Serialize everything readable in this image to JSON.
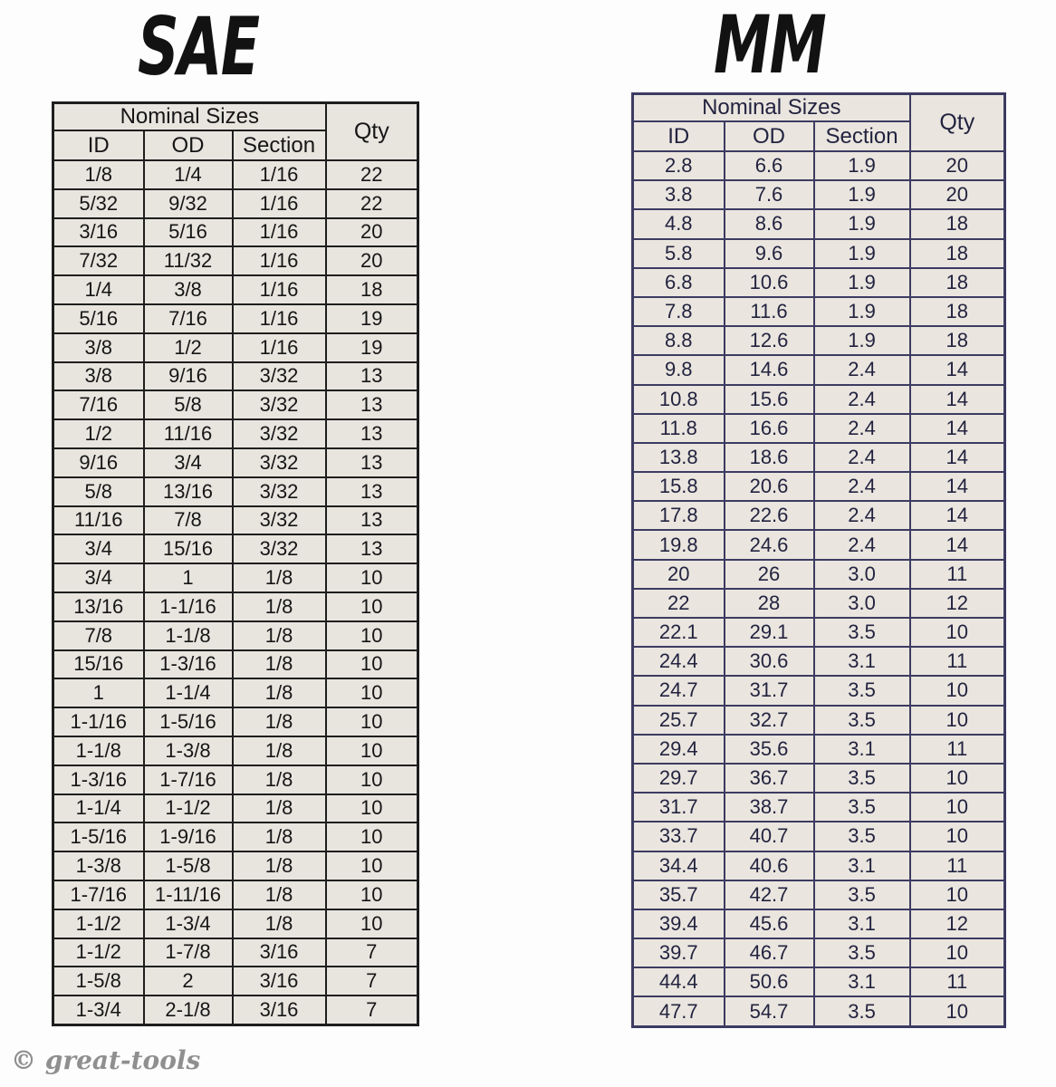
{
  "watermark": "© great-tools",
  "tables": [
    {
      "title": "SAE",
      "header_group": "Nominal Sizes",
      "qty_label": "Qty",
      "columns": [
        "ID",
        "OD",
        "Section"
      ],
      "rows": [
        [
          "1/8",
          "1/4",
          "1/16",
          "22"
        ],
        [
          "5/32",
          "9/32",
          "1/16",
          "22"
        ],
        [
          "3/16",
          "5/16",
          "1/16",
          "20"
        ],
        [
          "7/32",
          "11/32",
          "1/16",
          "20"
        ],
        [
          "1/4",
          "3/8",
          "1/16",
          "18"
        ],
        [
          "5/16",
          "7/16",
          "1/16",
          "19"
        ],
        [
          "3/8",
          "1/2",
          "1/16",
          "19"
        ],
        [
          "3/8",
          "9/16",
          "3/32",
          "13"
        ],
        [
          "7/16",
          "5/8",
          "3/32",
          "13"
        ],
        [
          "1/2",
          "11/16",
          "3/32",
          "13"
        ],
        [
          "9/16",
          "3/4",
          "3/32",
          "13"
        ],
        [
          "5/8",
          "13/16",
          "3/32",
          "13"
        ],
        [
          "11/16",
          "7/8",
          "3/32",
          "13"
        ],
        [
          "3/4",
          "15/16",
          "3/32",
          "13"
        ],
        [
          "3/4",
          "1",
          "1/8",
          "10"
        ],
        [
          "13/16",
          "1-1/16",
          "1/8",
          "10"
        ],
        [
          "7/8",
          "1-1/8",
          "1/8",
          "10"
        ],
        [
          "15/16",
          "1-3/16",
          "1/8",
          "10"
        ],
        [
          "1",
          "1-1/4",
          "1/8",
          "10"
        ],
        [
          "1-1/16",
          "1-5/16",
          "1/8",
          "10"
        ],
        [
          "1-1/8",
          "1-3/8",
          "1/8",
          "10"
        ],
        [
          "1-3/16",
          "1-7/16",
          "1/8",
          "10"
        ],
        [
          "1-1/4",
          "1-1/2",
          "1/8",
          "10"
        ],
        [
          "1-5/16",
          "1-9/16",
          "1/8",
          "10"
        ],
        [
          "1-3/8",
          "1-5/8",
          "1/8",
          "10"
        ],
        [
          "1-7/16",
          "1-11/16",
          "1/8",
          "10"
        ],
        [
          "1-1/2",
          "1-3/4",
          "1/8",
          "10"
        ],
        [
          "1-1/2",
          "1-7/8",
          "3/16",
          "7"
        ],
        [
          "1-5/8",
          "2",
          "3/16",
          "7"
        ],
        [
          "1-3/4",
          "2-1/8",
          "3/16",
          "7"
        ]
      ]
    },
    {
      "title": "MM",
      "header_group": "Nominal Sizes",
      "qty_label": "Qty",
      "columns": [
        "ID",
        "OD",
        "Section"
      ],
      "rows": [
        [
          "2.8",
          "6.6",
          "1.9",
          "20"
        ],
        [
          "3.8",
          "7.6",
          "1.9",
          "20"
        ],
        [
          "4.8",
          "8.6",
          "1.9",
          "18"
        ],
        [
          "5.8",
          "9.6",
          "1.9",
          "18"
        ],
        [
          "6.8",
          "10.6",
          "1.9",
          "18"
        ],
        [
          "7.8",
          "11.6",
          "1.9",
          "18"
        ],
        [
          "8.8",
          "12.6",
          "1.9",
          "18"
        ],
        [
          "9.8",
          "14.6",
          "2.4",
          "14"
        ],
        [
          "10.8",
          "15.6",
          "2.4",
          "14"
        ],
        [
          "11.8",
          "16.6",
          "2.4",
          "14"
        ],
        [
          "13.8",
          "18.6",
          "2.4",
          "14"
        ],
        [
          "15.8",
          "20.6",
          "2.4",
          "14"
        ],
        [
          "17.8",
          "22.6",
          "2.4",
          "14"
        ],
        [
          "19.8",
          "24.6",
          "2.4",
          "14"
        ],
        [
          "20",
          "26",
          "3.0",
          "11"
        ],
        [
          "22",
          "28",
          "3.0",
          "12"
        ],
        [
          "22.1",
          "29.1",
          "3.5",
          "10"
        ],
        [
          "24.4",
          "30.6",
          "3.1",
          "11"
        ],
        [
          "24.7",
          "31.7",
          "3.5",
          "10"
        ],
        [
          "25.7",
          "32.7",
          "3.5",
          "10"
        ],
        [
          "29.4",
          "35.6",
          "3.1",
          "11"
        ],
        [
          "29.7",
          "36.7",
          "3.5",
          "10"
        ],
        [
          "31.7",
          "38.7",
          "3.5",
          "10"
        ],
        [
          "33.7",
          "40.7",
          "3.5",
          "10"
        ],
        [
          "34.4",
          "40.6",
          "3.1",
          "11"
        ],
        [
          "35.7",
          "42.7",
          "3.5",
          "10"
        ],
        [
          "39.4",
          "45.6",
          "3.1",
          "12"
        ],
        [
          "39.7",
          "46.7",
          "3.5",
          "10"
        ],
        [
          "44.4",
          "50.6",
          "3.1",
          "11"
        ],
        [
          "47.7",
          "54.7",
          "3.5",
          "10"
        ]
      ]
    }
  ]
}
